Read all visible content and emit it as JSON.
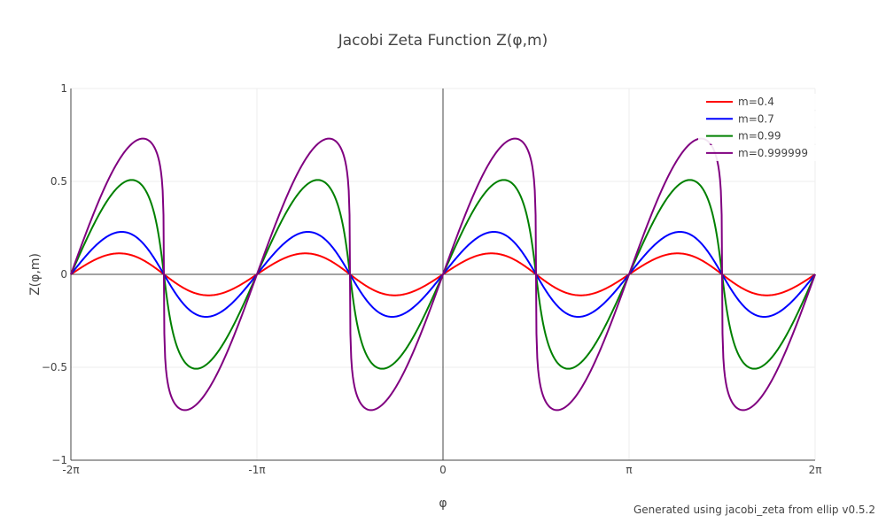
{
  "chart_data": {
    "type": "line",
    "title": "Jacobi Zeta Function Z(φ,m)",
    "xlabel": "φ",
    "ylabel": "Z(φ,m)",
    "xlim": [
      -6.283185,
      6.283185
    ],
    "ylim": [
      -1,
      1
    ],
    "x_unit": "radians",
    "xticks": [
      {
        "value": -6.283185,
        "label": "-2π"
      },
      {
        "value": -3.141593,
        "label": "-1π"
      },
      {
        "value": 0,
        "label": "0"
      },
      {
        "value": 3.141593,
        "label": "π"
      },
      {
        "value": 6.283185,
        "label": "2π"
      }
    ],
    "yticks": [
      {
        "value": -1,
        "label": "−1"
      },
      {
        "value": -0.5,
        "label": "−0.5"
      },
      {
        "value": 0,
        "label": "0"
      },
      {
        "value": 0.5,
        "label": "0.5"
      },
      {
        "value": 1,
        "label": "1"
      }
    ],
    "grid": true,
    "legend_position": "top-right",
    "series": [
      {
        "name": "m=0.4",
        "color": "#ff0000",
        "m": 0.4
      },
      {
        "name": "m=0.7",
        "color": "#0000ff",
        "m": 0.7
      },
      {
        "name": "m=0.99",
        "color": "#008000",
        "m": 0.99
      },
      {
        "name": "m=0.999999",
        "color": "#800080",
        "m": 0.999999
      }
    ]
  },
  "footnote": "Generated using jacobi_zeta from ellip v0.5.2"
}
